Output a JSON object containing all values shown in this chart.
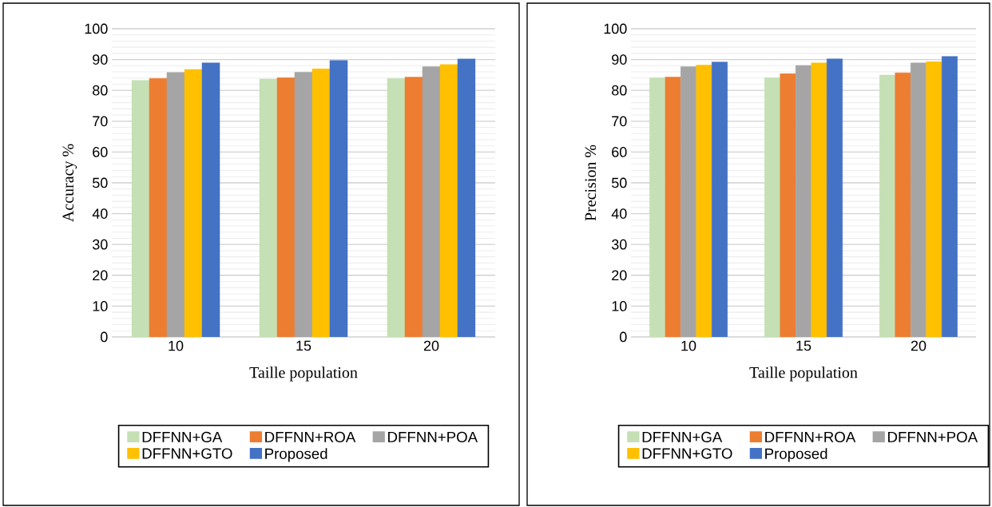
{
  "chart_data": [
    {
      "type": "bar",
      "xlabel": "Taille population",
      "ylabel": "Accuracy %",
      "categories": [
        "10",
        "15",
        "20"
      ],
      "ylim": [
        0,
        100
      ],
      "yticks": [
        0,
        10,
        20,
        30,
        40,
        50,
        60,
        70,
        80,
        90,
        100
      ],
      "grid": "y",
      "legend": "bottom",
      "series": [
        {
          "name": "DFFNN+GA",
          "color": "#c5e0b4",
          "values": [
            83.2,
            83.7,
            83.9
          ]
        },
        {
          "name": "DFFNN+ROA",
          "color": "#ed7d31",
          "values": [
            83.9,
            84.1,
            84.3
          ]
        },
        {
          "name": "DFFNN+POA",
          "color": "#a5a5a5",
          "values": [
            85.8,
            85.9,
            87.7
          ]
        },
        {
          "name": "DFFNN+GTO",
          "color": "#ffc000",
          "values": [
            86.8,
            87.0,
            88.4
          ]
        },
        {
          "name": "Proposed",
          "color": "#4472c4",
          "values": [
            88.9,
            89.7,
            90.2
          ]
        }
      ]
    },
    {
      "type": "bar",
      "xlabel": "Taille population",
      "ylabel": "Precision %",
      "categories": [
        "10",
        "15",
        "20"
      ],
      "ylim": [
        0,
        100
      ],
      "yticks": [
        0,
        10,
        20,
        30,
        40,
        50,
        60,
        70,
        80,
        90,
        100
      ],
      "grid": "y",
      "legend": "bottom",
      "series": [
        {
          "name": "DFFNN+GA",
          "color": "#c5e0b4",
          "values": [
            84.1,
            84.1,
            85.0
          ]
        },
        {
          "name": "DFFNN+ROA",
          "color": "#ed7d31",
          "values": [
            84.3,
            85.4,
            85.7
          ]
        },
        {
          "name": "DFFNN+POA",
          "color": "#a5a5a5",
          "values": [
            87.7,
            88.1,
            88.9
          ]
        },
        {
          "name": "DFFNN+GTO",
          "color": "#ffc000",
          "values": [
            88.2,
            88.9,
            89.3
          ]
        },
        {
          "name": "Proposed",
          "color": "#4472c4",
          "values": [
            89.2,
            90.2,
            91.0
          ]
        }
      ]
    }
  ]
}
